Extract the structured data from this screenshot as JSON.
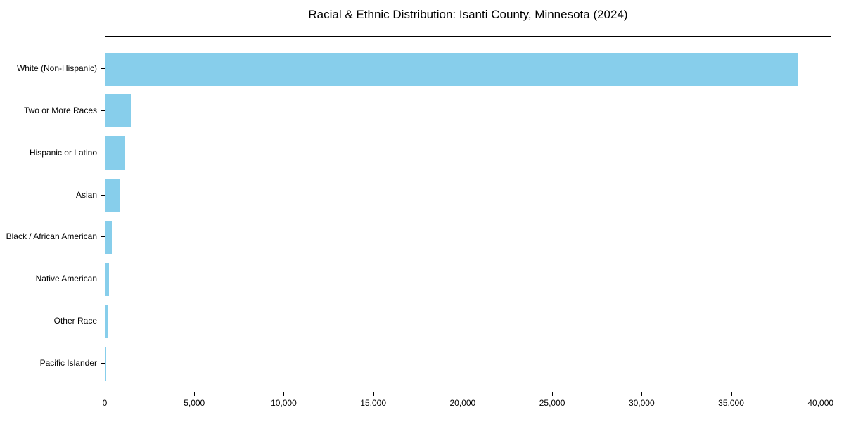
{
  "chart_data": {
    "type": "bar",
    "orientation": "horizontal",
    "title": "Racial & Ethnic Distribution: Isanti County, Minnesota (2024)",
    "categories": [
      "White (Non-Hispanic)",
      "Two or More Races",
      "Hispanic or Latino",
      "Asian",
      "Black / African American",
      "Native American",
      "Other Race",
      "Pacific Islander"
    ],
    "values": [
      38700,
      1400,
      1100,
      800,
      350,
      180,
      130,
      15
    ],
    "xlabel": "",
    "ylabel": "",
    "xlim": [
      0,
      40600
    ],
    "xticks": [
      0,
      5000,
      10000,
      15000,
      20000,
      25000,
      30000,
      35000,
      40000
    ],
    "xtick_labels": [
      "0",
      "5,000",
      "10,000",
      "15,000",
      "20,000",
      "25,000",
      "30,000",
      "35,000",
      "40,000"
    ],
    "bar_color": "#87CEEB",
    "axis_color": "#000000",
    "background_color": "#ffffff",
    "grid": false,
    "legend": null
  }
}
